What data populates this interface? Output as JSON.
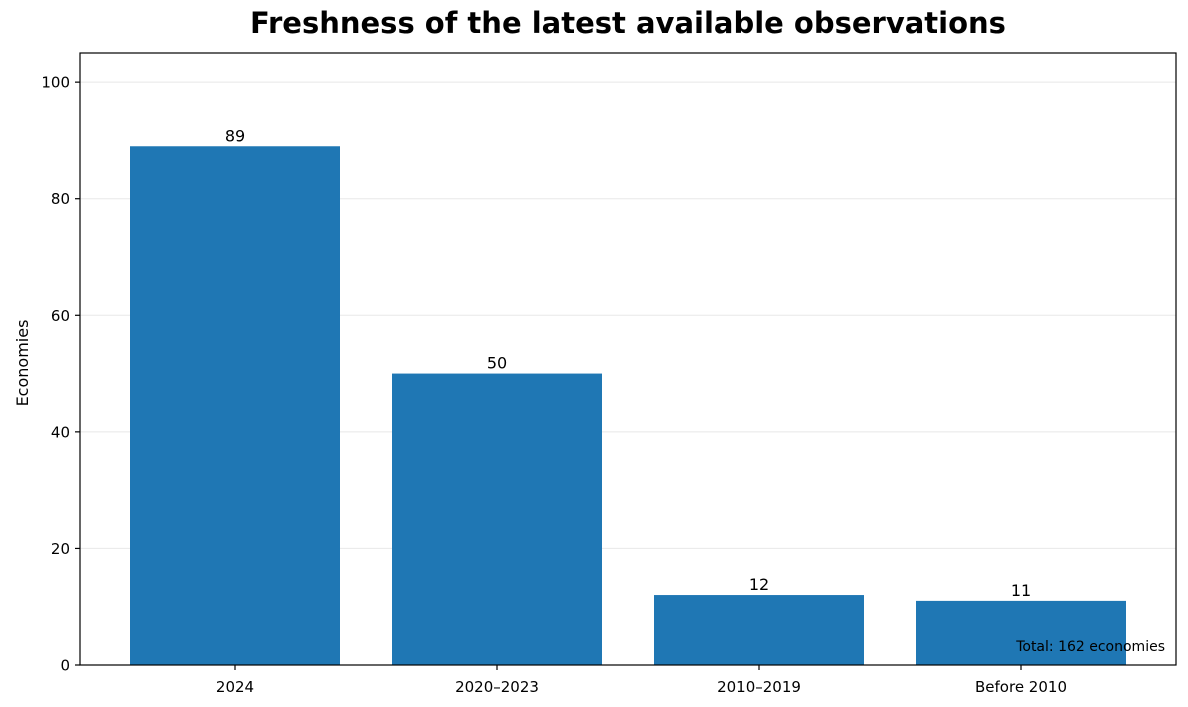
{
  "chart_data": {
    "type": "bar",
    "title": "Freshness of the latest available observations",
    "xlabel": "",
    "ylabel": "Economies",
    "categories": [
      "2024",
      "2020–2023",
      "2010–2019",
      "Before 2010"
    ],
    "values": [
      89,
      50,
      12,
      11
    ],
    "data_labels": [
      "89",
      "50",
      "12",
      "11"
    ],
    "ylim": [
      0,
      105
    ],
    "yticks": [
      0,
      20,
      40,
      60,
      80,
      100
    ],
    "grid": "horizontal",
    "legend": "none",
    "annotation": "Total: 162 economies",
    "colors": {
      "bar": "#1f77b4",
      "grid": "#e8e8e8",
      "axis": "#000000"
    }
  }
}
